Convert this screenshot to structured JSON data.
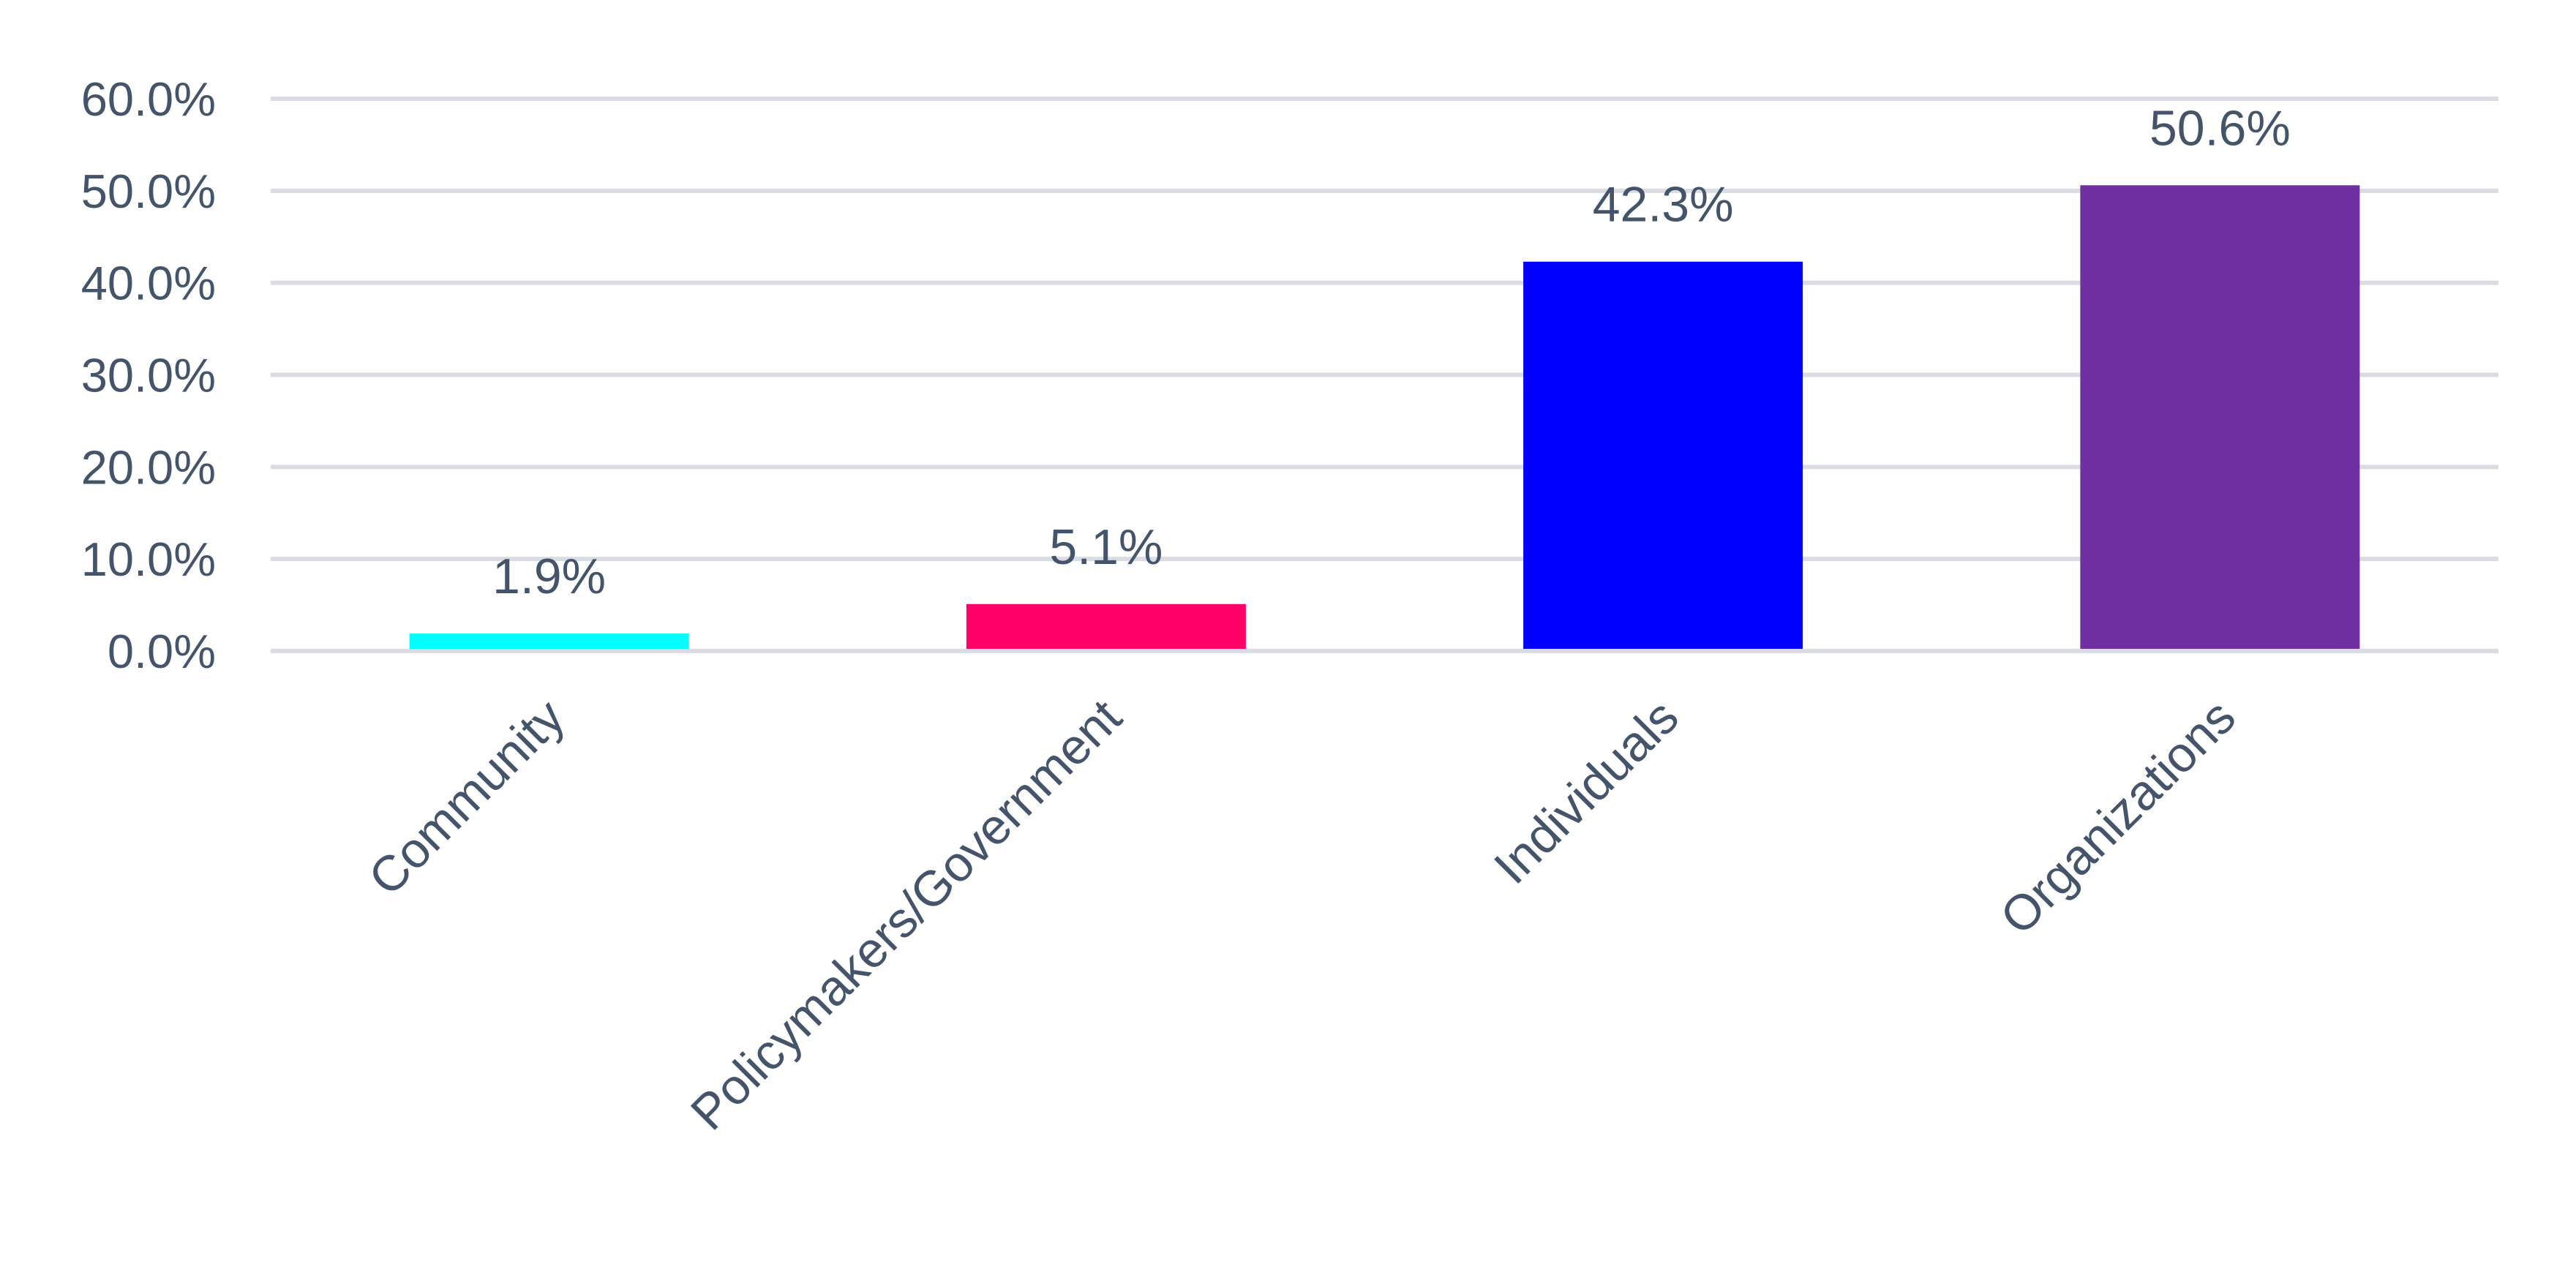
{
  "chart_data": {
    "type": "bar",
    "title": "",
    "xlabel": "",
    "ylabel": "",
    "categories": [
      "Community",
      "Policymakers/Government",
      "Individuals",
      "Organizations"
    ],
    "values": [
      1.9,
      5.1,
      42.3,
      50.6
    ],
    "data_labels": [
      "1.9%",
      "5.1%",
      "42.3%",
      "50.6%"
    ],
    "colors": [
      "#00ffff",
      "#ff0066",
      "#0000ff",
      "#7030a0"
    ],
    "ylim": [
      0,
      60
    ],
    "yticks": [
      0,
      10,
      20,
      30,
      40,
      50,
      60
    ],
    "ytick_labels": [
      "0.0%",
      "10.0%",
      "20.0%",
      "30.0%",
      "40.0%",
      "50.0%",
      "60.0%"
    ],
    "grid": true,
    "legend": "none",
    "text_color": "#44546a",
    "grid_color": "#d9dde3"
  }
}
